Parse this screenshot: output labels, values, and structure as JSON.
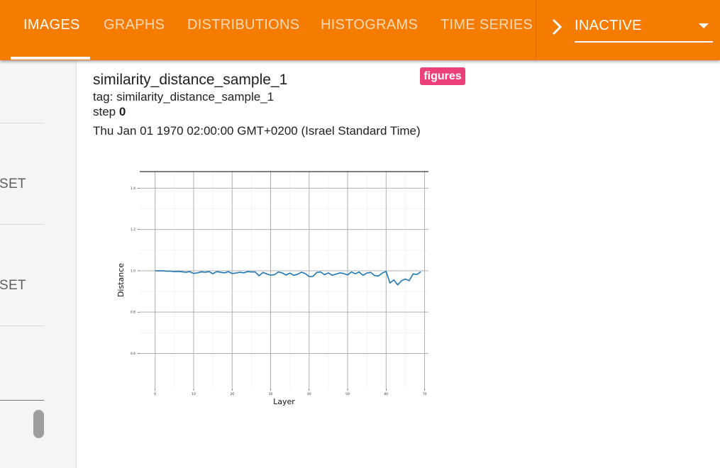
{
  "tabs": [
    {
      "label": "IMAGES",
      "active": true
    },
    {
      "label": "GRAPHS",
      "active": false
    },
    {
      "label": "DISTRIBUTIONS",
      "active": false
    },
    {
      "label": "HISTOGRAMS",
      "active": false
    },
    {
      "label": "TIME SERIES",
      "active": false
    }
  ],
  "toolbar": {
    "chevron_icon": "chevron-right-icon",
    "run_selector": {
      "value": "INACTIVE",
      "icon": "arrow-drop-down-icon"
    }
  },
  "sidebar": {
    "reset_buttons": [
      "ESET",
      "ESET"
    ]
  },
  "card": {
    "title": "similarity_distance_sample_1",
    "badge": "figures",
    "tag_label": "tag:",
    "tag_value": "similarity_distance_sample_1",
    "step_label": "step",
    "step_value": "0",
    "timestamp": "Thu Jan 01 1970 02:00:00 GMT+0200 (Israel Standard Time)"
  },
  "colors": {
    "accent": "#f57c00",
    "badge": "#ec407a",
    "line": "#1f77b4"
  },
  "chart_data": {
    "type": "line",
    "xlabel": "Layer",
    "ylabel": "Distance",
    "xlim": [
      -4,
      71
    ],
    "ylim": [
      0.43,
      1.48
    ],
    "xticks": [
      0,
      10,
      20,
      30,
      40,
      50,
      60,
      70
    ],
    "yticks": [
      0.6,
      0.8,
      1.0,
      1.2,
      1.4
    ],
    "xtick_labels": [
      "0",
      "10",
      "20",
      "30",
      "40",
      "50",
      "60",
      "70"
    ],
    "ytick_labels": [
      "0.6",
      "0.8",
      "1.0",
      "1.2",
      "1.4"
    ],
    "grid": true,
    "series": [
      {
        "x": [
          0,
          1,
          2,
          3,
          4,
          5,
          6,
          7,
          8,
          9,
          10,
          11,
          12,
          13,
          14,
          15,
          16,
          17,
          18,
          19,
          20,
          21,
          22,
          23,
          24,
          25,
          26,
          27,
          28,
          29,
          30,
          31,
          32,
          33,
          34,
          35,
          36,
          37,
          38,
          39,
          40,
          41,
          42,
          43,
          44,
          45,
          46,
          47,
          48,
          49,
          50,
          51,
          52,
          53,
          54,
          55,
          56,
          57,
          58,
          59,
          60,
          61,
          62,
          63,
          64,
          65,
          66,
          67,
          68,
          69
        ],
        "values": [
          1.0,
          1.0,
          1.0,
          0.998,
          0.998,
          0.996,
          0.997,
          0.995,
          0.993,
          0.996,
          0.987,
          0.99,
          0.995,
          0.993,
          0.996,
          0.986,
          0.996,
          0.993,
          0.99,
          0.996,
          0.987,
          0.989,
          0.993,
          0.99,
          0.996,
          0.994,
          0.994,
          0.976,
          0.992,
          0.985,
          0.979,
          0.981,
          0.994,
          0.99,
          0.979,
          0.989,
          0.978,
          0.983,
          0.993,
          0.987,
          0.972,
          0.973,
          0.992,
          0.994,
          0.981,
          0.99,
          0.978,
          0.984,
          0.99,
          0.987,
          0.98,
          0.994,
          0.986,
          0.994,
          0.978,
          0.989,
          0.992,
          0.977,
          0.975,
          0.989,
          0.997,
          0.941,
          0.956,
          0.932,
          0.952,
          0.96,
          0.952,
          0.985,
          0.982,
          0.995
        ]
      }
    ]
  }
}
